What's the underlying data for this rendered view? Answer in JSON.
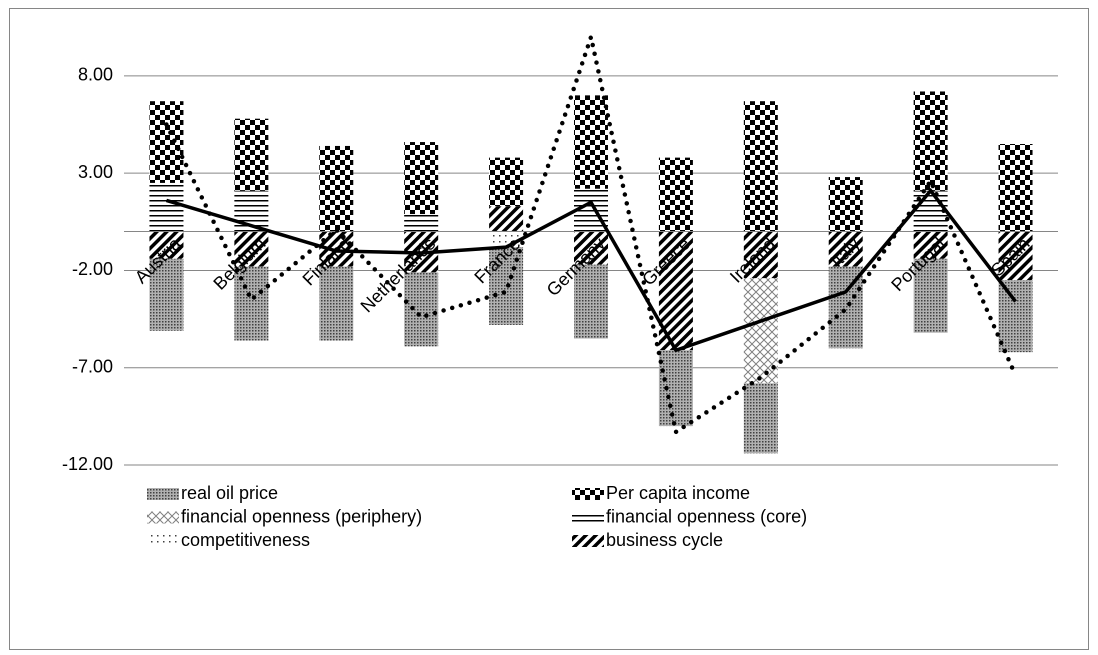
{
  "chart_data": {
    "type": "stacked-bar",
    "categories": [
      "Austria",
      "Belgium",
      "Finland",
      "Netherlands",
      "France",
      "Germany",
      "Greece",
      "Ireland",
      "Italy",
      "Portugal",
      "Spain"
    ],
    "series": [
      {
        "name": "real oil price",
        "color": "#7f7f7f",
        "pattern": "fine-dots",
        "values": [
          -3.7,
          -3.8,
          -3.8,
          -3.8,
          -4.0,
          -3.8,
          -3.9,
          -3.6,
          -4.2,
          -3.8,
          -3.7
        ]
      },
      {
        "name": "Per capita income",
        "color": "#000000",
        "pattern": "checker",
        "values": [
          4.2,
          3.7,
          4.4,
          3.7,
          2.5,
          4.8,
          3.8,
          6.7,
          2.8,
          5.1,
          4.5
        ]
      },
      {
        "name": "financial openness (periphery)",
        "color": "#808080",
        "pattern": "cross",
        "values": [
          0,
          0,
          0,
          0,
          0,
          0,
          0,
          -5.4,
          0,
          0,
          0
        ]
      },
      {
        "name": "financial openness (core)",
        "color": "#000000",
        "pattern": "hlines",
        "values": [
          2.5,
          2.1,
          0,
          0.9,
          0,
          2.2,
          0,
          0,
          0,
          2.1,
          0
        ]
      },
      {
        "name": "competitiveness",
        "color": "#404040",
        "pattern": "sparse-dots",
        "values": [
          0,
          0,
          0,
          0,
          -0.8,
          0,
          0,
          0,
          0,
          0,
          0
        ]
      },
      {
        "name": "business cycle",
        "color": "#000000",
        "pattern": "diagonal",
        "values": [
          -1.4,
          -1.8,
          -1.8,
          -2.1,
          1.3,
          -1.7,
          -6.1,
          -2.4,
          -1.8,
          -1.4,
          -2.5
        ]
      }
    ],
    "lines": [
      {
        "color": "#000000",
        "style": "solid",
        "values": [
          1.6,
          0.3,
          -1.0,
          -1.1,
          -0.8,
          1.5,
          -6.1,
          -4.6,
          -3.1,
          2.1,
          -3.6
        ]
      },
      {
        "color": "#000000",
        "style": "dotted",
        "values": [
          5.5,
          -3.5,
          0.1,
          -4.4,
          -3.1,
          10.0,
          -10.3,
          -7.5,
          -4.0,
          2.6,
          -7.4
        ]
      }
    ],
    "ylim": [
      -12,
      10
    ],
    "yticks": [
      {
        "value": -12,
        "label": "-12.00"
      },
      {
        "value": -7,
        "label": "-7.00"
      },
      {
        "value": -2,
        "label": "-2.00"
      },
      {
        "value": 3,
        "label": "3.00"
      },
      {
        "value": 8,
        "label": "8.00"
      }
    ],
    "grid": true
  }
}
